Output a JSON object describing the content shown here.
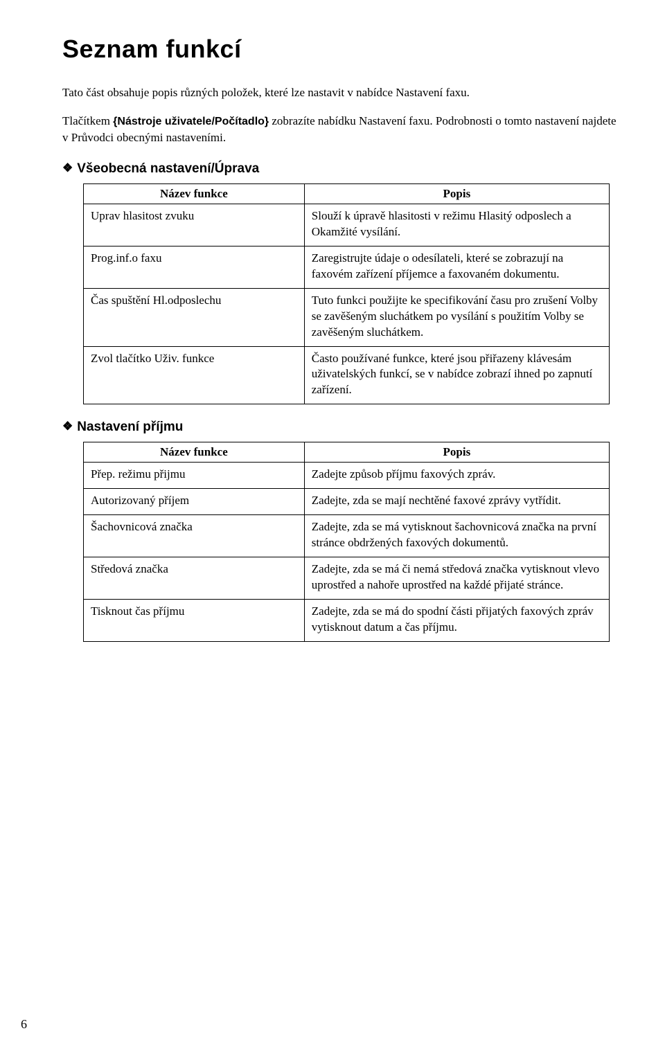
{
  "title": "Seznam funkcí",
  "intro": {
    "line1": "Tato část obsahuje popis různých položek, které lze nastavit v nabídce Nastavení faxu.",
    "line2a": "Tlačítkem ",
    "button_label": "{Nástroje uživatele/Počítadlo}",
    "line2b": " zobrazíte nabídku Nastavení faxu. Podrobnosti o tomto nastavení najdete v Průvodci obecnými nastaveními."
  },
  "section1": {
    "heading": "Všeobecná nastavení/Úprava",
    "col1": "Název funkce",
    "col2": "Popis",
    "rows": [
      {
        "name": "Uprav hlasitost zvuku",
        "desc": "Slouží k úpravě hlasitosti v režimu Hlasitý odposlech a Okamžité vysílání."
      },
      {
        "name": "Prog.inf.o faxu",
        "desc": "Zaregistrujte údaje o odesílateli, které se zobrazují na faxovém zařízení příjemce a faxovaném dokumentu."
      },
      {
        "name": "Čas spuštění Hl.odposlechu",
        "desc": "Tuto funkci použijte ke specifikování času pro zrušení Volby se zavěšeným sluchátkem po vysílání s použitím Volby se zavěšeným sluchátkem."
      },
      {
        "name": "Zvol tlačítko Uživ. funkce",
        "desc": "Často používané funkce, které jsou přiřazeny klávesám uživatelských funkcí, se v nabídce zobrazí ihned po zapnutí zařízení."
      }
    ]
  },
  "section2": {
    "heading": "Nastavení příjmu",
    "col1": "Název funkce",
    "col2": "Popis",
    "rows": [
      {
        "name": "Přep. režimu přijmu",
        "desc": "Zadejte způsob příjmu faxových zpráv."
      },
      {
        "name": "Autorizovaný příjem",
        "desc": "Zadejte, zda se mají nechtěné faxové zprávy vytřídit."
      },
      {
        "name": "Šachovnicová značka",
        "desc": "Zadejte, zda se má vytisknout šachovnicová značka na první stránce obdržených faxových dokumentů."
      },
      {
        "name": "Středová značka",
        "desc": "Zadejte, zda se má či nemá středová značka vytisknout vlevo uprostřed a nahoře uprostřed na každé přijaté stránce."
      },
      {
        "name": "Tisknout čas příjmu",
        "desc": "Zadejte, zda se má do spodní části přijatých faxových zpráv vytisknout datum a čas příjmu."
      }
    ]
  },
  "page_number": "6"
}
